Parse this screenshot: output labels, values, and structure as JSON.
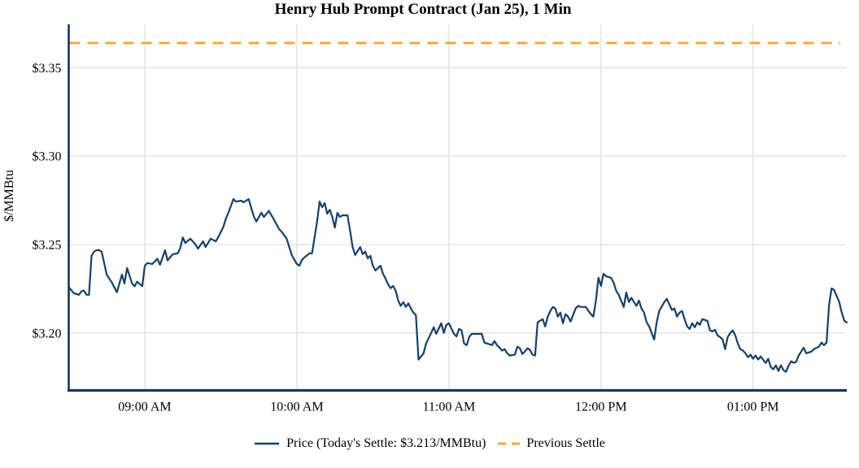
{
  "title": "Henry Hub Prompt Contract (Jan 25), 1 Min",
  "colors": {
    "price_line": "#15406A",
    "previous_settle": "#F5A623",
    "grid": "#D9D9D9",
    "axis": "#16365F",
    "text": "#000000",
    "background": "#FFFFFF"
  },
  "chart_data": {
    "type": "line",
    "title": "Henry Hub Prompt Contract (Jan 25), 1 Min",
    "xlabel": "",
    "ylabel": "$/MMBtu",
    "grid": true,
    "legend_position": "bottom",
    "x_axis": {
      "unit": "minutes from 08:30 AM",
      "range_minutes": [
        0,
        307
      ],
      "start_time": "08:30 AM",
      "end_time": "01:37 PM",
      "ticks": [
        {
          "t": 30,
          "label": "09:00 AM"
        },
        {
          "t": 90,
          "label": "10:00 AM"
        },
        {
          "t": 150,
          "label": "11:00 AM"
        },
        {
          "t": 210,
          "label": "12:00 PM"
        },
        {
          "t": 270,
          "label": "01:00 PM"
        }
      ]
    },
    "y_axis": {
      "unit": "$/MMBtu",
      "range": [
        3.1675,
        3.3745
      ],
      "ticks": [
        {
          "value": 3.35,
          "label": "$3.35"
        },
        {
          "value": 3.3,
          "label": "$3.30"
        },
        {
          "value": 3.25,
          "label": "$3.25"
        },
        {
          "value": 3.2,
          "label": "$3.20"
        }
      ]
    },
    "series": [
      {
        "name": "Price",
        "legend": "Price (Today's Settle: $3.213/MMBtu)",
        "type": "line",
        "style": "solid",
        "color": "#15406A",
        "today_settle": 3.213,
        "points": [
          [
            0,
            3.226
          ],
          [
            2,
            3.2225
          ],
          [
            4,
            3.2216
          ],
          [
            5,
            3.2235
          ],
          [
            6,
            3.224
          ],
          [
            7,
            3.2216
          ],
          [
            8,
            3.2216
          ],
          [
            9,
            3.2436
          ],
          [
            10,
            3.246
          ],
          [
            11,
            3.2468
          ],
          [
            12,
            3.2468
          ],
          [
            13,
            3.2459
          ],
          [
            15,
            3.233
          ],
          [
            17,
            3.2285
          ],
          [
            19,
            3.223
          ],
          [
            21,
            3.233
          ],
          [
            22,
            3.228
          ],
          [
            23,
            3.2367
          ],
          [
            25,
            3.228
          ],
          [
            26,
            3.2264
          ],
          [
            27,
            3.229
          ],
          [
            29,
            3.2264
          ],
          [
            30,
            3.238
          ],
          [
            31,
            3.2395
          ],
          [
            33,
            3.239
          ],
          [
            35,
            3.242
          ],
          [
            36,
            3.2385
          ],
          [
            38,
            3.2468
          ],
          [
            39,
            3.241
          ],
          [
            41,
            3.2445
          ],
          [
            43,
            3.245
          ],
          [
            44,
            3.248
          ],
          [
            45,
            3.254
          ],
          [
            46,
            3.2509
          ],
          [
            48,
            3.2533
          ],
          [
            50,
            3.25
          ],
          [
            51,
            3.2477
          ],
          [
            53,
            3.2518
          ],
          [
            54,
            3.2486
          ],
          [
            56,
            3.2533
          ],
          [
            58,
            3.2518
          ],
          [
            59,
            3.2541
          ],
          [
            61,
            3.26
          ],
          [
            62,
            3.2647
          ],
          [
            63,
            3.268
          ],
          [
            65,
            3.2757
          ],
          [
            66,
            3.2743
          ],
          [
            68,
            3.2748
          ],
          [
            69,
            3.2739
          ],
          [
            71,
            3.2757
          ],
          [
            73,
            3.266
          ],
          [
            74,
            3.263
          ],
          [
            76,
            3.268
          ],
          [
            77,
            3.2656
          ],
          [
            79,
            3.269
          ],
          [
            81,
            3.264
          ],
          [
            83,
            3.2587
          ],
          [
            84,
            3.2573
          ],
          [
            86,
            3.2533
          ],
          [
            88,
            3.244
          ],
          [
            90,
            3.239
          ],
          [
            91,
            3.238
          ],
          [
            92,
            3.2413
          ],
          [
            93,
            3.2427
          ],
          [
            95,
            3.245
          ],
          [
            96,
            3.245
          ],
          [
            98,
            3.263
          ],
          [
            99,
            3.2743
          ],
          [
            100,
            3.2711
          ],
          [
            101,
            3.2734
          ],
          [
            102,
            3.2674
          ],
          [
            103,
            3.2697
          ],
          [
            104,
            3.2656
          ],
          [
            105,
            3.2596
          ],
          [
            106,
            3.2679
          ],
          [
            107,
            3.2656
          ],
          [
            108,
            3.2665
          ],
          [
            110,
            3.2665
          ],
          [
            111,
            3.258
          ],
          [
            112,
            3.2486
          ],
          [
            113,
            3.2441
          ],
          [
            115,
            3.2486
          ],
          [
            116,
            3.2445
          ],
          [
            117,
            3.246
          ],
          [
            118,
            3.2422
          ],
          [
            119,
            3.2436
          ],
          [
            120,
            3.238
          ],
          [
            121,
            3.2353
          ],
          [
            123,
            3.238
          ],
          [
            124,
            3.2335
          ],
          [
            125,
            3.2307
          ],
          [
            126,
            3.2275
          ],
          [
            127,
            3.2253
          ],
          [
            128,
            3.2266
          ],
          [
            129,
            3.2239
          ],
          [
            130,
            3.2183
          ],
          [
            131,
            3.2153
          ],
          [
            132,
            3.2174
          ],
          [
            133,
            3.2147
          ],
          [
            134,
            3.2167
          ],
          [
            135,
            3.2138
          ],
          [
            136,
            3.2115
          ],
          [
            137,
            3.2101
          ],
          [
            138,
            3.1849
          ],
          [
            140,
            3.1885
          ],
          [
            141,
            3.194
          ],
          [
            143,
            3.2
          ],
          [
            144,
            3.2032
          ],
          [
            145,
            3.1995
          ],
          [
            147,
            3.2055
          ],
          [
            148,
            3.2
          ],
          [
            149,
            3.2046
          ],
          [
            150,
            3.2055
          ],
          [
            152,
            3.1995
          ],
          [
            153,
            3.198
          ],
          [
            154,
            3.2023
          ],
          [
            155,
            3.2014
          ],
          [
            156,
            3.194
          ],
          [
            157,
            3.1931
          ],
          [
            158,
            3.1977
          ],
          [
            159,
            3.1995
          ],
          [
            161,
            3.1995
          ],
          [
            163,
            3.1995
          ],
          [
            164,
            3.1945
          ],
          [
            166,
            3.1936
          ],
          [
            167,
            3.1931
          ],
          [
            168,
            3.1954
          ],
          [
            169,
            3.1931
          ],
          [
            170,
            3.1917
          ],
          [
            171,
            3.19
          ],
          [
            172,
            3.1908
          ],
          [
            173,
            3.1885
          ],
          [
            174,
            3.1872
          ],
          [
            176,
            3.1877
          ],
          [
            177,
            3.1922
          ],
          [
            178,
            3.1913
          ],
          [
            179,
            3.1881
          ],
          [
            180,
            3.1895
          ],
          [
            181,
            3.1913
          ],
          [
            182,
            3.1904
          ],
          [
            183,
            3.1877
          ],
          [
            184,
            3.1872
          ],
          [
            185,
            3.206
          ],
          [
            187,
            3.2078
          ],
          [
            188,
            3.2037
          ],
          [
            189,
            3.2092
          ],
          [
            190,
            3.2124
          ],
          [
            191,
            3.2147
          ],
          [
            192,
            3.2138
          ],
          [
            193,
            3.2092
          ],
          [
            194,
            3.2115
          ],
          [
            195,
            3.2055
          ],
          [
            196,
            3.2106
          ],
          [
            197,
            3.2092
          ],
          [
            198,
            3.2064
          ],
          [
            200,
            3.2138
          ],
          [
            201,
            3.2153
          ],
          [
            202,
            3.2147
          ],
          [
            204,
            3.2147
          ],
          [
            206,
            3.2106
          ],
          [
            207,
            3.2092
          ],
          [
            208,
            3.2183
          ],
          [
            209,
            3.2312
          ],
          [
            210,
            3.2266
          ],
          [
            211,
            3.2335
          ],
          [
            212,
            3.2321
          ],
          [
            214,
            3.2312
          ],
          [
            215,
            3.2284
          ],
          [
            216,
            3.2239
          ],
          [
            217,
            3.2216
          ],
          [
            219,
            3.2147
          ],
          [
            220,
            3.2229
          ],
          [
            221,
            3.2175
          ],
          [
            222,
            3.2199
          ],
          [
            223,
            3.2175
          ],
          [
            224,
            3.2153
          ],
          [
            225,
            3.2183
          ],
          [
            226,
            3.2138
          ],
          [
            227,
            3.2115
          ],
          [
            228,
            3.206
          ],
          [
            229,
            3.2037
          ],
          [
            230,
            3.2
          ],
          [
            231,
            3.1963
          ],
          [
            232,
            3.206
          ],
          [
            233,
            3.2124
          ],
          [
            235,
            3.2175
          ],
          [
            236,
            3.2193
          ],
          [
            237,
            3.2161
          ],
          [
            238,
            3.213
          ],
          [
            239,
            3.2138
          ],
          [
            240,
            3.2092
          ],
          [
            241,
            3.2115
          ],
          [
            242,
            3.2124
          ],
          [
            243,
            3.2078
          ],
          [
            244,
            3.2037
          ],
          [
            245,
            3.2023
          ],
          [
            246,
            3.2055
          ],
          [
            247,
            3.2032
          ],
          [
            248,
            3.206
          ],
          [
            249,
            3.2046
          ],
          [
            250,
            3.2078
          ],
          [
            252,
            3.2069
          ],
          [
            253,
            3.2014
          ],
          [
            254,
            3.2009
          ],
          [
            255,
            3.2018
          ],
          [
            256,
            3.1986
          ],
          [
            257,
            3.1977
          ],
          [
            258,
            3.1963
          ],
          [
            259,
            3.1908
          ],
          [
            260,
            3.1977
          ],
          [
            261,
            3.2
          ],
          [
            262,
            3.2014
          ],
          [
            263,
            3.1986
          ],
          [
            264,
            3.194
          ],
          [
            265,
            3.1908
          ],
          [
            266,
            3.19
          ],
          [
            267,
            3.1885
          ],
          [
            268,
            3.1863
          ],
          [
            269,
            3.1877
          ],
          [
            270,
            3.1854
          ],
          [
            271,
            3.1872
          ],
          [
            272,
            3.1849
          ],
          [
            273,
            3.1867
          ],
          [
            275,
            3.183
          ],
          [
            276,
            3.1854
          ],
          [
            277,
            3.1808
          ],
          [
            278,
            3.1794
          ],
          [
            279,
            3.1817
          ],
          [
            280,
            3.1785
          ],
          [
            281,
            3.1817
          ],
          [
            282,
            3.179
          ],
          [
            283,
            3.178
          ],
          [
            284,
            3.1813
          ],
          [
            285,
            3.184
          ],
          [
            286,
            3.1831
          ],
          [
            287,
            3.1836
          ],
          [
            288,
            3.1872
          ],
          [
            289,
            3.1894
          ],
          [
            290,
            3.1917
          ],
          [
            291,
            3.1885
          ],
          [
            293,
            3.1894
          ],
          [
            294,
            3.1908
          ],
          [
            296,
            3.1922
          ],
          [
            297,
            3.1945
          ],
          [
            298,
            3.1931
          ],
          [
            299,
            3.1945
          ],
          [
            300,
            3.216
          ],
          [
            301,
            3.2252
          ],
          [
            302,
            3.2243
          ],
          [
            304,
            3.2175
          ],
          [
            305,
            3.2115
          ],
          [
            306,
            3.2069
          ],
          [
            307,
            3.206
          ]
        ]
      },
      {
        "name": "Previous Settle",
        "type": "hline",
        "style": "dashed",
        "color": "#F5A623",
        "value": 3.364
      }
    ]
  }
}
